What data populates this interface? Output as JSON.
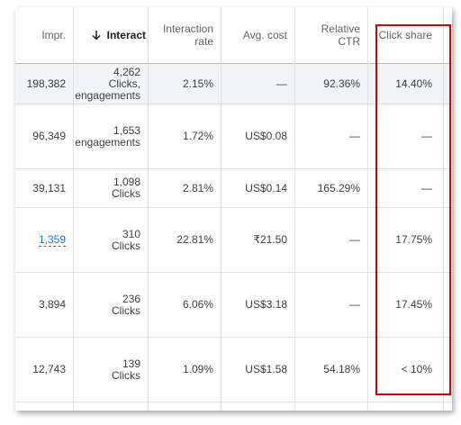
{
  "headers": {
    "impr": "Impr.",
    "interactions": "Interact",
    "interaction_rate": "Interaction\nrate",
    "avg_cost": "Avg. cost",
    "relative_ctr": "Relative\nCTR",
    "click_share": "Click share"
  },
  "sort_icon": "arrow-down-icon",
  "rows": [
    {
      "impr": "198,382",
      "interactions": "4,262\nClicks,\nengagements",
      "rate": "2.15%",
      "cost": "—",
      "ctr": "92.36%",
      "share": "14.40%"
    },
    {
      "impr": "96,349",
      "interactions": "1,653\nengagements",
      "rate": "1.72%",
      "cost": "US$0.08",
      "ctr": "—",
      "share": "—"
    },
    {
      "impr": "39,131",
      "interactions": "1,098\nClicks",
      "rate": "2.81%",
      "cost": "US$0.14",
      "ctr": "165.29%",
      "share": "—"
    },
    {
      "impr": "1,359",
      "interactions": "310\nClicks",
      "rate": "22.81%",
      "cost": "₹21.50",
      "ctr": "—",
      "share": "17.75%"
    },
    {
      "impr": "3,894",
      "interactions": "236\nClicks",
      "rate": "6.06%",
      "cost": "US$3.18",
      "ctr": "—",
      "share": "17.45%"
    },
    {
      "impr": "12,743",
      "interactions": "139\nClicks",
      "rate": "1.09%",
      "cost": "US$1.58",
      "ctr": "54.18%",
      "share": "< 10%"
    }
  ],
  "colors": {
    "highlight_box": "#d50000",
    "link": "#1a73e8",
    "selected_row": "#f1f3f4"
  }
}
